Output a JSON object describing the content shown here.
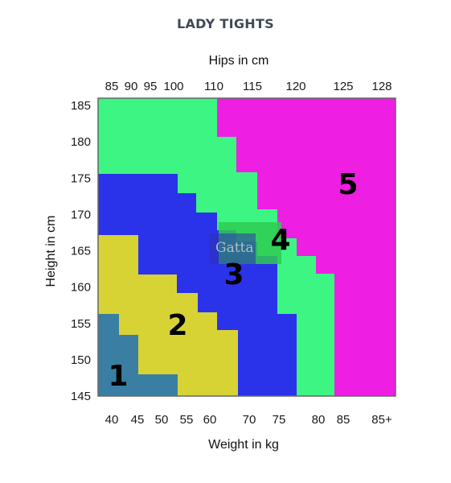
{
  "page": {
    "title": "LADY TIGHTS"
  },
  "chart_data": {
    "type": "heatmap",
    "title": "LADY TIGHTS",
    "top_axis": {
      "label": "Hips in cm",
      "ticks": [
        "85",
        "90",
        "95",
        "100",
        "110",
        "115",
        "120",
        "125",
        "128"
      ]
    },
    "x_axis": {
      "label": "Weight in kg",
      "ticks": [
        "40",
        "45",
        "50",
        "55",
        "60",
        "70",
        "75",
        "80",
        "85",
        "85+"
      ]
    },
    "y_axis": {
      "label": "Height in cm",
      "ticks": [
        "145",
        "150",
        "155",
        "160",
        "165",
        "170",
        "175",
        "180",
        "185"
      ],
      "ylim": [
        145,
        185
      ]
    },
    "sizes": [
      {
        "label": "1",
        "color": "#3a7fa3"
      },
      {
        "label": "2",
        "color": "#d7d335"
      },
      {
        "label": "3",
        "color": "#2b33ea"
      },
      {
        "label": "4",
        "color": "#2fcb53"
      },
      {
        "label": "5",
        "color": "#ee1ee3"
      }
    ],
    "green_region_color": "#3df582",
    "grid": false,
    "watermark": "Gatta"
  }
}
